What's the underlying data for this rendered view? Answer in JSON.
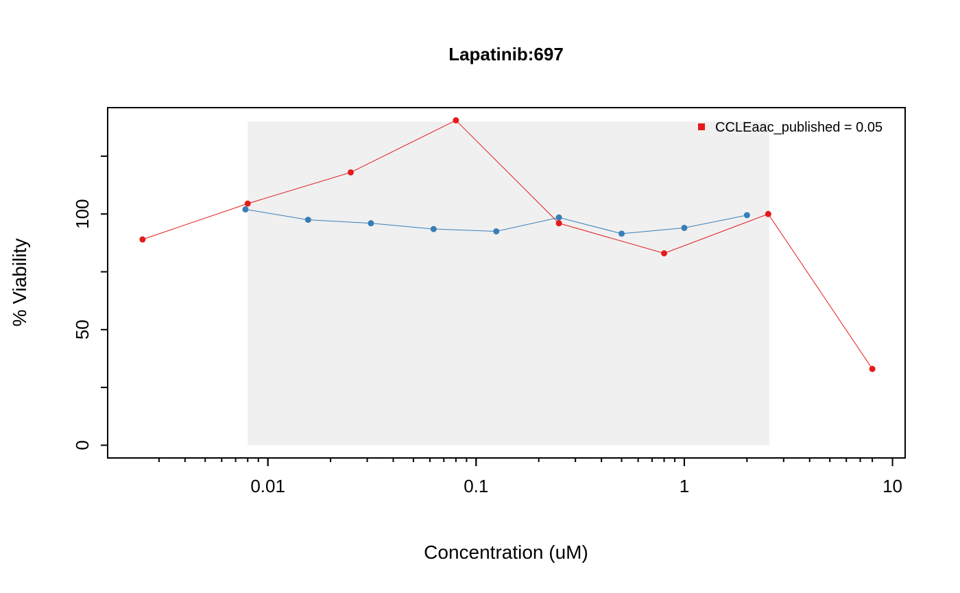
{
  "chart_data": {
    "type": "line",
    "title": "Lapatinib:697",
    "xlabel": "Concentration (uM)",
    "ylabel": "% Viability",
    "x_scale": "log10",
    "xlim": [
      0.0017,
      11.5
    ],
    "ylim": [
      -5.5,
      146
    ],
    "x_ticks": [
      {
        "value": 0.01,
        "label": "0.01"
      },
      {
        "value": 0.1,
        "label": "0.1"
      },
      {
        "value": 1,
        "label": "1"
      },
      {
        "value": 10,
        "label": "10"
      }
    ],
    "y_ticks": [
      {
        "value": 0,
        "label": "0"
      },
      {
        "value": 50,
        "label": "50"
      },
      {
        "value": 100,
        "label": "100"
      }
    ],
    "shaded_region": {
      "x": [
        0.008,
        2.56
      ],
      "y": [
        0,
        140
      ]
    },
    "legend": {
      "placement": "top-right",
      "entries": [
        {
          "label": "CCLEaac_published = 0.05",
          "color": "#E41A1C"
        }
      ]
    },
    "series": [
      {
        "color": "#E41A1C",
        "x": [
          0.0025,
          0.008,
          0.025,
          0.08,
          0.25,
          0.8,
          2.53,
          8.0
        ],
        "y": [
          89,
          104.5,
          118,
          140.5,
          96,
          83,
          100,
          33
        ]
      },
      {
        "color": "#377EB8",
        "x": [
          0.0078,
          0.0156,
          0.03125,
          0.0625,
          0.125,
          0.25,
          0.5,
          1.0,
          2.0
        ],
        "y": [
          102,
          97.5,
          96,
          93.5,
          92.5,
          98.5,
          91.5,
          94,
          99.5
        ]
      }
    ]
  }
}
